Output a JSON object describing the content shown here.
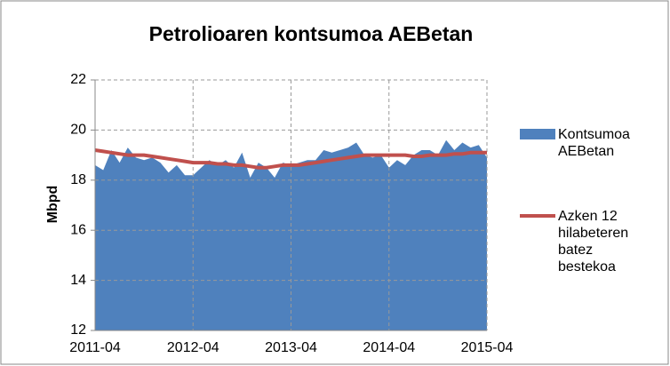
{
  "chart_data": {
    "type": "area-line",
    "title": "Petrolioaren kontsumoa AEBetan",
    "y_label": "Mbpd",
    "x": [
      "2011-04",
      "2011-05",
      "2011-06",
      "2011-07",
      "2011-08",
      "2011-09",
      "2011-10",
      "2011-11",
      "2011-12",
      "2012-01",
      "2012-02",
      "2012-03",
      "2012-04",
      "2012-05",
      "2012-06",
      "2012-07",
      "2012-08",
      "2012-09",
      "2012-10",
      "2012-11",
      "2012-12",
      "2013-01",
      "2013-02",
      "2013-03",
      "2013-04",
      "2013-05",
      "2013-06",
      "2013-07",
      "2013-08",
      "2013-09",
      "2013-10",
      "2013-11",
      "2013-12",
      "2014-01",
      "2014-02",
      "2014-03",
      "2014-04",
      "2014-05",
      "2014-06",
      "2014-07",
      "2014-08",
      "2014-09",
      "2014-10",
      "2014-11",
      "2014-12",
      "2015-01",
      "2015-02",
      "2015-03",
      "2015-04"
    ],
    "xticks": [
      "2011-04",
      "2012-04",
      "2013-04",
      "2014-04",
      "2015-04"
    ],
    "series": [
      {
        "name": "Kontsumoa AEBetan",
        "kind": "area",
        "color": "#4f81bd",
        "values": [
          18.6,
          18.4,
          19.2,
          18.7,
          19.3,
          18.9,
          18.8,
          18.9,
          18.7,
          18.3,
          18.6,
          18.2,
          18.2,
          18.5,
          18.8,
          18.6,
          18.8,
          18.5,
          19.1,
          18.1,
          18.7,
          18.5,
          18.1,
          18.7,
          18.6,
          18.7,
          18.8,
          18.8,
          19.2,
          19.1,
          19.2,
          19.3,
          19.5,
          19.0,
          18.9,
          19.0,
          18.5,
          18.8,
          18.6,
          19.0,
          19.2,
          19.2,
          19.0,
          19.6,
          19.2,
          19.5,
          19.3,
          19.4,
          18.9
        ]
      },
      {
        "name": "Azken 12 hilabeteren batez bestekoa",
        "kind": "line",
        "color": "#c0504d",
        "values": [
          19.2,
          19.15,
          19.1,
          19.05,
          19.0,
          19.0,
          19.0,
          18.95,
          18.9,
          18.85,
          18.8,
          18.75,
          18.7,
          18.7,
          18.7,
          18.65,
          18.65,
          18.6,
          18.6,
          18.55,
          18.5,
          18.5,
          18.55,
          18.6,
          18.6,
          18.6,
          18.65,
          18.7,
          18.75,
          18.8,
          18.85,
          18.9,
          18.95,
          19.0,
          19.0,
          19.0,
          19.0,
          19.0,
          19.0,
          18.95,
          18.95,
          19.0,
          19.0,
          19.0,
          19.05,
          19.05,
          19.1,
          19.1,
          19.1
        ]
      }
    ],
    "ylim": [
      12,
      22
    ],
    "yticks": [
      12,
      14,
      16,
      18,
      20,
      22
    ],
    "grid": true,
    "legend": "right"
  }
}
